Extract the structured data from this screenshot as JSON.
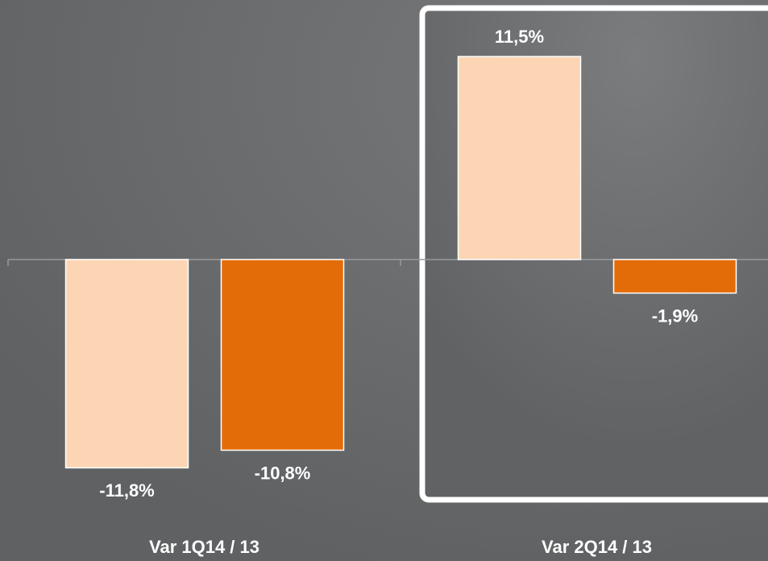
{
  "chart_data": {
    "type": "bar",
    "categories": [
      "Var 1Q14 / 13",
      "Var 2Q14 / 13"
    ],
    "series": [
      {
        "color": "#fcd5b4",
        "values": [
          -11.8,
          11.5
        ],
        "value_labels": [
          "-11,8%",
          "11,5%"
        ]
      },
      {
        "color": "#e36c09",
        "values": [
          -10.8,
          -1.9
        ],
        "value_labels": [
          "-10,8%",
          "-1,9%"
        ]
      }
    ],
    "grid": false
  }
}
